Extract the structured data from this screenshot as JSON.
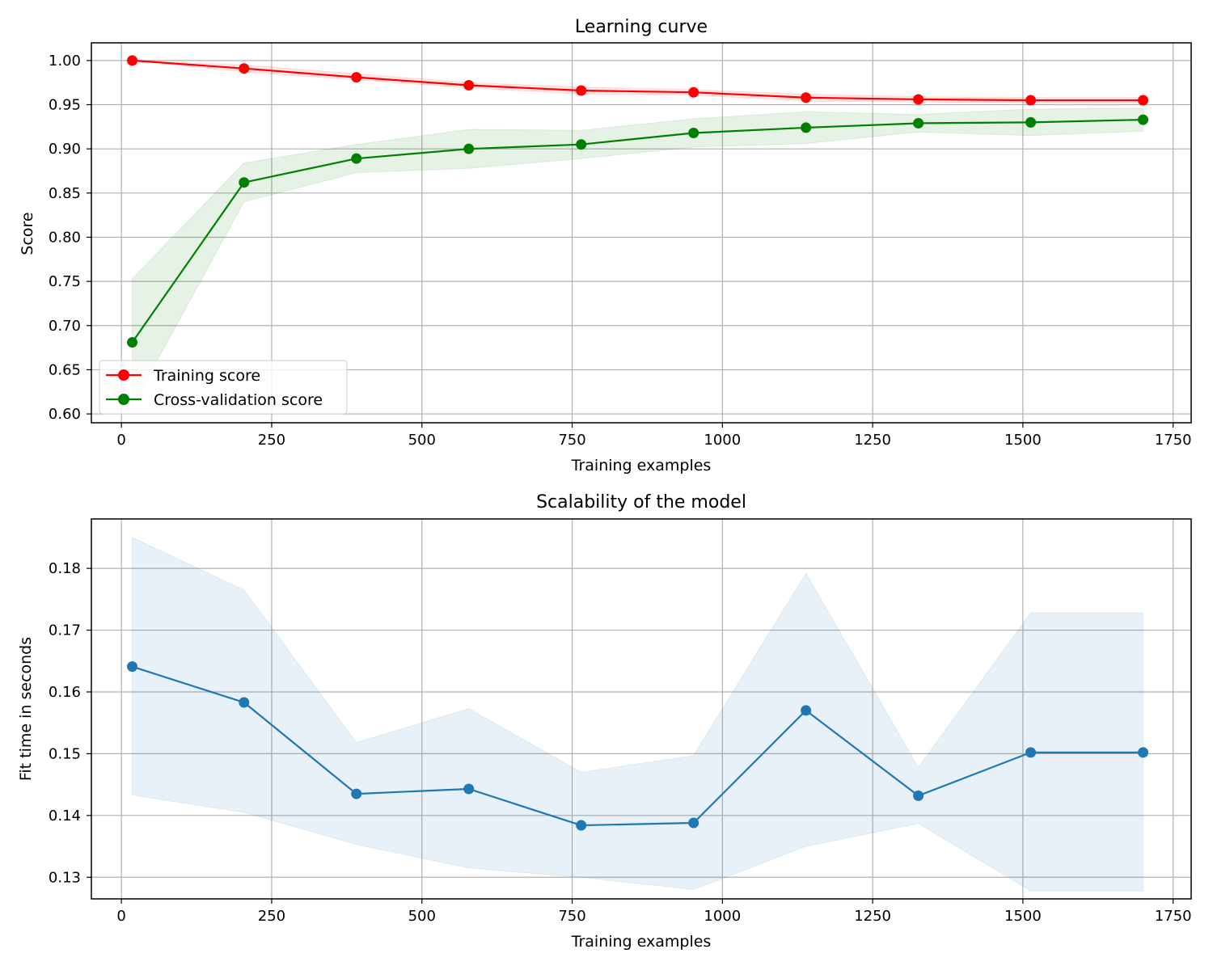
{
  "chart_data": [
    {
      "type": "line",
      "title": "Learning curve",
      "xlabel": "Training examples",
      "ylabel": "Score",
      "xlim": [
        -50,
        1780
      ],
      "ylim": [
        0.59,
        1.02
      ],
      "xticks": [
        0,
        250,
        500,
        750,
        1000,
        1250,
        1500,
        1750
      ],
      "xtick_labels": [
        "0",
        "250",
        "500",
        "750",
        "1000",
        "1250",
        "1500",
        "1750"
      ],
      "yticks": [
        0.6,
        0.65,
        0.7,
        0.75,
        0.8,
        0.85,
        0.9,
        0.95,
        1.0
      ],
      "ytick_labels": [
        "0.60",
        "0.65",
        "0.70",
        "0.75",
        "0.80",
        "0.85",
        "0.90",
        "0.95",
        "1.00"
      ],
      "grid": true,
      "legend_position": "lower-left",
      "x": [
        18,
        204,
        391,
        578,
        765,
        952,
        1139,
        1326,
        1513,
        1700
      ],
      "series": [
        {
          "name": "Training score",
          "color": "#ff0000",
          "values": [
            1.0,
            0.991,
            0.981,
            0.972,
            0.966,
            0.964,
            0.958,
            0.956,
            0.955,
            0.955
          ],
          "band_lower": [
            1.0,
            0.987,
            0.978,
            0.969,
            0.962,
            0.961,
            0.954,
            0.953,
            0.952,
            0.952
          ],
          "band_upper": [
            1.0,
            0.995,
            0.985,
            0.975,
            0.97,
            0.967,
            0.962,
            0.959,
            0.958,
            0.958
          ]
        },
        {
          "name": "Cross-validation score",
          "color": "#008000",
          "values": [
            0.681,
            0.862,
            0.889,
            0.9,
            0.905,
            0.918,
            0.924,
            0.929,
            0.93,
            0.933
          ],
          "band_lower": [
            0.609,
            0.84,
            0.873,
            0.878,
            0.889,
            0.902,
            0.906,
            0.919,
            0.915,
            0.92
          ],
          "band_upper": [
            0.753,
            0.884,
            0.905,
            0.922,
            0.921,
            0.934,
            0.942,
            0.939,
            0.945,
            0.946
          ]
        }
      ]
    },
    {
      "type": "line",
      "title": "Scalability of the model",
      "xlabel": "Training examples",
      "ylabel": "Fit time in seconds",
      "xlim": [
        -50,
        1780
      ],
      "ylim": [
        0.1265,
        0.188
      ],
      "xticks": [
        0,
        250,
        500,
        750,
        1000,
        1250,
        1500,
        1750
      ],
      "xtick_labels": [
        "0",
        "250",
        "500",
        "750",
        "1000",
        "1250",
        "1500",
        "1750"
      ],
      "yticks": [
        0.13,
        0.14,
        0.15,
        0.16,
        0.17,
        0.18
      ],
      "ytick_labels": [
        "0.13",
        "0.14",
        "0.15",
        "0.16",
        "0.17",
        "0.18"
      ],
      "grid": true,
      "x": [
        18,
        204,
        391,
        578,
        765,
        952,
        1139,
        1326,
        1513,
        1700
      ],
      "series": [
        {
          "color": "#1f77b4",
          "values": [
            0.1641,
            0.1583,
            0.1435,
            0.1443,
            0.1384,
            0.1388,
            0.157,
            0.1432,
            0.1502,
            0.1502
          ],
          "band_lower": [
            0.1433,
            0.1405,
            0.1353,
            0.1315,
            0.13,
            0.128,
            0.135,
            0.1387,
            0.1278,
            0.1278
          ],
          "band_upper": [
            0.185,
            0.1765,
            0.1518,
            0.1573,
            0.147,
            0.1497,
            0.1792,
            0.1478,
            0.1728,
            0.1728
          ]
        }
      ]
    }
  ]
}
